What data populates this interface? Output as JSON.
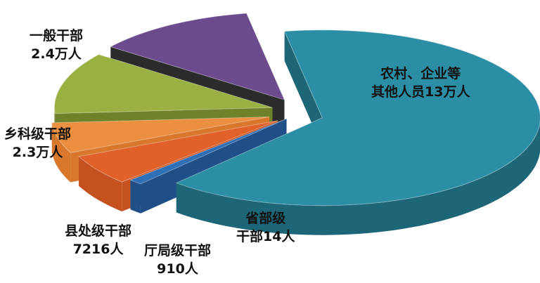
{
  "chart_data": {
    "type": "pie",
    "style": "3d-exploded",
    "slices": [
      {
        "label_line1": "农村、企业等",
        "label_line2": "其他人员13万人",
        "value": 130000,
        "color": "#2b8ea5",
        "side": "#1d6678"
      },
      {
        "label_line1": "省部级",
        "label_line2": "干部14人",
        "value": 14,
        "color": "#2f6fb5",
        "side": "#1f4f86"
      },
      {
        "label_line1": "厅局级干部",
        "label_line2": "910人",
        "value": 910,
        "color": "#e0622a",
        "side": "#c4521f"
      },
      {
        "label_line1": "县处级干部",
        "label_line2": "7216人",
        "value": 7216,
        "color": "#eb9040",
        "side": "#d9782c"
      },
      {
        "label_line1": "乡科级干部",
        "label_line2": "2.3万人",
        "value": 23000,
        "color": "#9bb043",
        "side": "#6f8229"
      },
      {
        "label_line1": "一般干部",
        "label_line2": "2.4万人",
        "value": 24000,
        "color": "#6b4b8d",
        "side": "#2b2b2b"
      }
    ]
  }
}
